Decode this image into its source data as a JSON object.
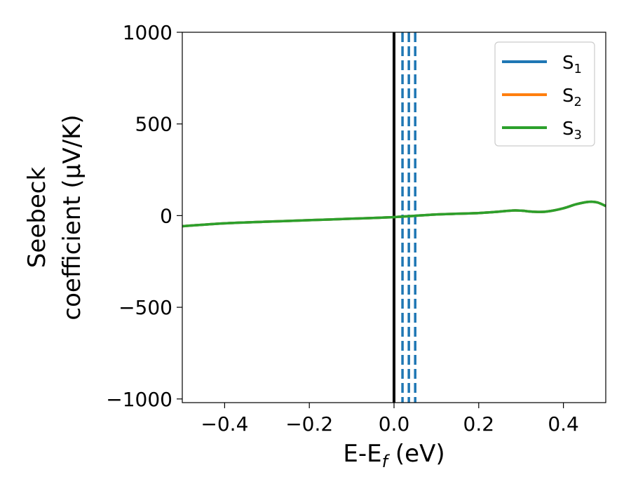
{
  "chart_data": {
    "type": "line",
    "title": "",
    "xlabel": {
      "main": "E-E",
      "sub": "f",
      "unit": " (eV)"
    },
    "ylabel": {
      "line1": "Seebeck",
      "line2": "coefficient  (μV/K)"
    },
    "xlim": [
      -0.5,
      0.5
    ],
    "ylim": [
      -1020,
      1000
    ],
    "xticks": [
      -0.4,
      -0.2,
      0.0,
      0.2,
      0.4
    ],
    "xtick_labels": [
      "−0.4",
      "−0.2",
      "0.0",
      "0.2",
      "0.4"
    ],
    "yticks": [
      -1000,
      -500,
      0,
      500,
      1000
    ],
    "ytick_labels": [
      "−1000",
      "−500",
      "0",
      "500",
      "1000"
    ],
    "grid": false,
    "legend_position": "top-right",
    "series": [
      {
        "name": "S",
        "sub": "1",
        "color": "#1f77b4",
        "x": [
          -0.5,
          -0.4,
          -0.3,
          -0.2,
          -0.1,
          0.0,
          0.1,
          0.2,
          0.25,
          0.28,
          0.3,
          0.33,
          0.36,
          0.4,
          0.43,
          0.46,
          0.48,
          0.5
        ],
        "y": [
          -58,
          -42,
          -33,
          -25,
          -17,
          -8,
          6,
          14,
          22,
          28,
          27,
          21,
          22,
          40,
          62,
          75,
          72,
          52
        ]
      },
      {
        "name": "S",
        "sub": "2",
        "color": "#ff7f0e",
        "x": [
          -0.5,
          -0.4,
          -0.3,
          -0.2,
          -0.1,
          0.0,
          0.1,
          0.2,
          0.25,
          0.28,
          0.3,
          0.33,
          0.36,
          0.4,
          0.43,
          0.46,
          0.48,
          0.5
        ],
        "y": [
          -58,
          -42,
          -33,
          -25,
          -17,
          -8,
          6,
          14,
          22,
          28,
          27,
          21,
          22,
          40,
          62,
          75,
          72,
          52
        ]
      },
      {
        "name": "S",
        "sub": "3",
        "color": "#2ca02c",
        "x": [
          -0.5,
          -0.4,
          -0.3,
          -0.2,
          -0.1,
          0.0,
          0.1,
          0.2,
          0.25,
          0.28,
          0.3,
          0.33,
          0.36,
          0.4,
          0.43,
          0.46,
          0.48,
          0.5
        ],
        "y": [
          -58,
          -42,
          -33,
          -25,
          -17,
          -8,
          6,
          14,
          22,
          28,
          27,
          21,
          22,
          40,
          62,
          75,
          72,
          52
        ]
      }
    ],
    "vertical_lines": [
      {
        "x": 0.0,
        "color": "#000000",
        "style": "solid"
      },
      {
        "x": 0.02,
        "color": "#1f77b4",
        "style": "dashed"
      },
      {
        "x": 0.035,
        "color": "#1f77b4",
        "style": "dashed"
      },
      {
        "x": 0.05,
        "color": "#1f77b4",
        "style": "dashed"
      }
    ]
  }
}
